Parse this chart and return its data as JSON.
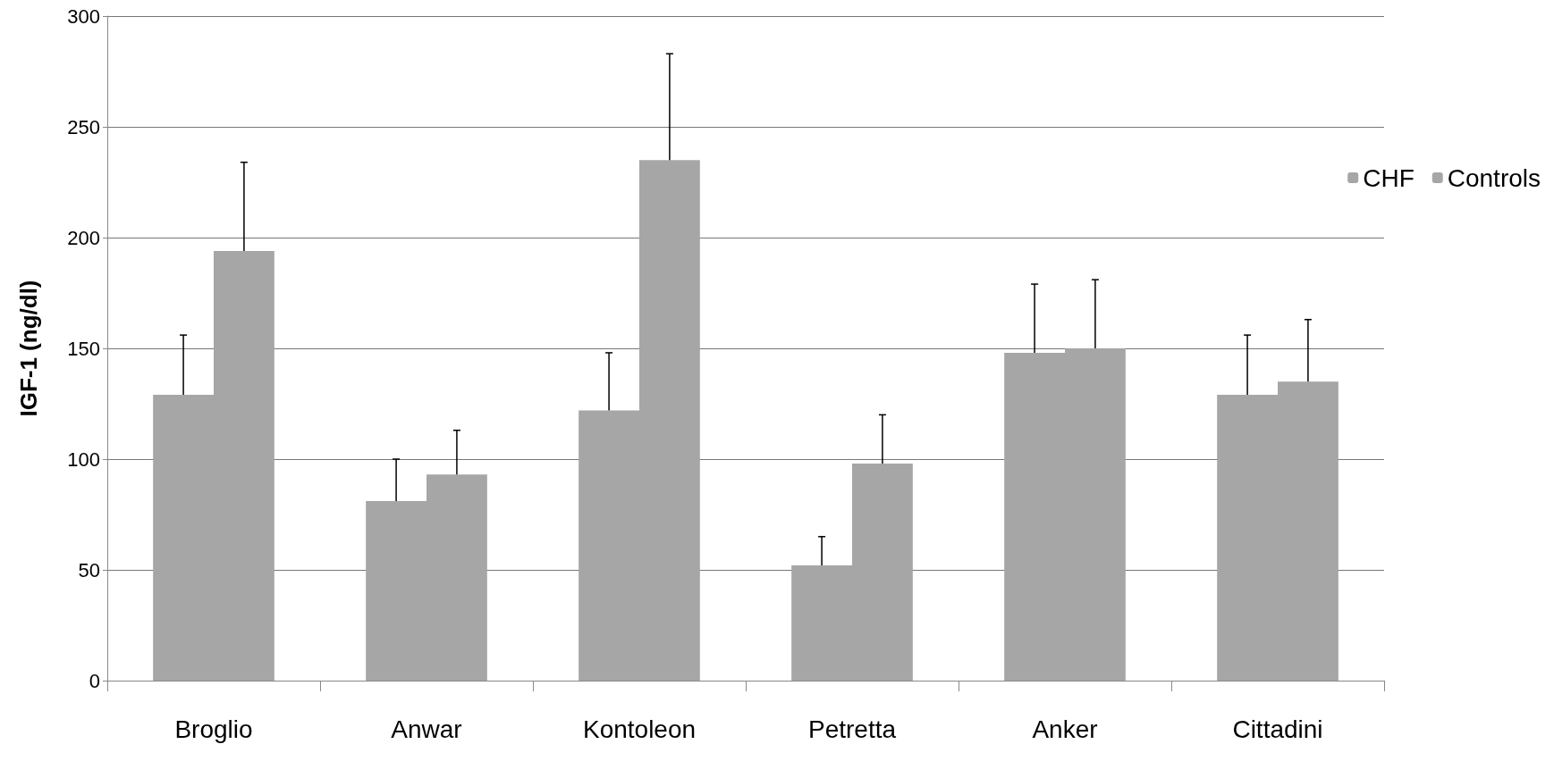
{
  "chart_data": {
    "type": "bar",
    "ylabel": "IGF-1 (ng/dl)",
    "categories": [
      "Broglio",
      "Anwar",
      "Kontoleon",
      "Petretta",
      "Anker",
      "Cittadini"
    ],
    "series": [
      {
        "name": "CHF",
        "color": "#a6a6a6",
        "values": [
          129,
          81,
          122,
          52,
          148,
          129
        ],
        "errors": [
          [
            129,
            156
          ],
          [
            81,
            100
          ],
          [
            122,
            148
          ],
          [
            52,
            65
          ],
          [
            148,
            179
          ],
          [
            129,
            156
          ]
        ]
      },
      {
        "name": "Controls",
        "color": "#a6a6a6",
        "values": [
          194,
          93,
          235,
          98,
          150,
          135
        ],
        "errors": [
          [
            194,
            234
          ],
          [
            93,
            113
          ],
          [
            235,
            283
          ],
          [
            98,
            120
          ],
          [
            150,
            181
          ],
          [
            135,
            163
          ]
        ]
      }
    ],
    "ylim": [
      0,
      300
    ],
    "yticks": [
      0,
      50,
      100,
      150,
      200,
      250,
      300
    ],
    "grid": "y",
    "legend": "right"
  }
}
